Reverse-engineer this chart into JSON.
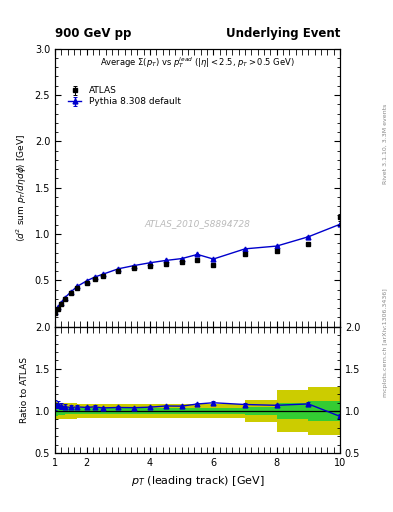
{
  "title_left": "900 GeV pp",
  "title_right": "Underlying Event",
  "subtitle": "Average Σ(p_T) vs p_T^{lead} (|η| < 2.5, p_T > 0.5 GeV)",
  "xlabel": "p_{T} (leading track) [GeV]",
  "ylabel_main": "⟨d^{2} sum p_{T}/dηdφ⟩ [GeV]",
  "ylabel_ratio": "Ratio to ATLAS",
  "watermark": "ATLAS_2010_S8894728",
  "right_label": "Rivet 3.1.10, 3.3M events",
  "right_label2": "mcplots.cern.ch [arXiv:1306.3436]",
  "atlas_x": [
    1.0,
    1.1,
    1.2,
    1.3,
    1.5,
    1.7,
    2.0,
    2.25,
    2.5,
    3.0,
    3.5,
    4.0,
    4.5,
    5.0,
    5.5,
    6.0,
    7.0,
    8.0,
    9.0,
    10.0
  ],
  "atlas_y": [
    0.145,
    0.195,
    0.245,
    0.295,
    0.36,
    0.415,
    0.475,
    0.51,
    0.545,
    0.6,
    0.635,
    0.66,
    0.675,
    0.695,
    0.72,
    0.665,
    0.78,
    0.815,
    0.895,
    1.18
  ],
  "atlas_yerr": [
    0.008,
    0.008,
    0.008,
    0.008,
    0.008,
    0.008,
    0.008,
    0.008,
    0.008,
    0.008,
    0.008,
    0.008,
    0.008,
    0.008,
    0.01,
    0.01,
    0.012,
    0.015,
    0.02,
    0.04
  ],
  "mc_x": [
    1.0,
    1.1,
    1.2,
    1.3,
    1.5,
    1.7,
    2.0,
    2.25,
    2.5,
    3.0,
    3.5,
    4.0,
    4.5,
    5.0,
    5.5,
    6.0,
    7.0,
    8.0,
    9.0,
    10.0
  ],
  "mc_y": [
    0.155,
    0.21,
    0.26,
    0.31,
    0.375,
    0.435,
    0.495,
    0.535,
    0.565,
    0.625,
    0.66,
    0.69,
    0.715,
    0.735,
    0.78,
    0.73,
    0.84,
    0.87,
    0.97,
    1.105
  ],
  "mc_yerr": [
    0.002,
    0.002,
    0.002,
    0.002,
    0.002,
    0.002,
    0.002,
    0.002,
    0.002,
    0.002,
    0.002,
    0.002,
    0.002,
    0.002,
    0.002,
    0.002,
    0.003,
    0.004,
    0.005,
    0.007
  ],
  "green_band_x_lo": [
    1.0,
    1.1,
    1.2,
    1.3,
    1.5,
    1.7,
    2.0,
    2.25,
    2.5,
    3.0,
    3.5,
    4.0,
    4.5,
    5.0,
    5.5,
    6.0,
    7.0,
    8.0,
    9.0
  ],
  "green_band_x_hi": [
    1.1,
    1.2,
    1.3,
    1.5,
    1.7,
    2.0,
    2.25,
    2.5,
    3.0,
    3.5,
    4.0,
    4.5,
    5.0,
    5.5,
    6.0,
    7.0,
    8.0,
    9.0,
    10.0
  ],
  "green_band_lo": [
    0.94,
    0.95,
    0.955,
    0.96,
    0.96,
    0.965,
    0.965,
    0.965,
    0.965,
    0.965,
    0.965,
    0.965,
    0.965,
    0.965,
    0.965,
    0.965,
    0.95,
    0.9,
    0.88
  ],
  "green_band_hi": [
    1.06,
    1.05,
    1.045,
    1.04,
    1.04,
    1.035,
    1.035,
    1.035,
    1.035,
    1.035,
    1.035,
    1.035,
    1.035,
    1.035,
    1.035,
    1.035,
    1.05,
    1.1,
    1.12
  ],
  "yellow_band_lo": [
    0.89,
    0.9,
    0.905,
    0.91,
    0.91,
    0.92,
    0.92,
    0.92,
    0.92,
    0.92,
    0.92,
    0.92,
    0.92,
    0.92,
    0.92,
    0.92,
    0.87,
    0.75,
    0.72
  ],
  "yellow_band_hi": [
    1.11,
    1.1,
    1.095,
    1.09,
    1.09,
    1.08,
    1.08,
    1.08,
    1.08,
    1.08,
    1.08,
    1.08,
    1.08,
    1.08,
    1.08,
    1.08,
    1.13,
    1.25,
    1.28
  ],
  "main_ylim": [
    0.0,
    3.0
  ],
  "main_yticks": [
    0.5,
    1.0,
    1.5,
    2.0,
    2.5,
    3.0
  ],
  "ratio_ylim": [
    0.5,
    2.0
  ],
  "ratio_yticks": [
    0.5,
    1.0,
    1.5,
    2.0
  ],
  "xlim": [
    1.0,
    10.0
  ],
  "xticks": [
    1,
    2,
    4,
    6,
    8,
    10
  ],
  "mc_color": "#0000cc",
  "atlas_color": "#000000",
  "green_color": "#33cc33",
  "yellow_color": "#cccc00",
  "bg_color": "#ffffff"
}
